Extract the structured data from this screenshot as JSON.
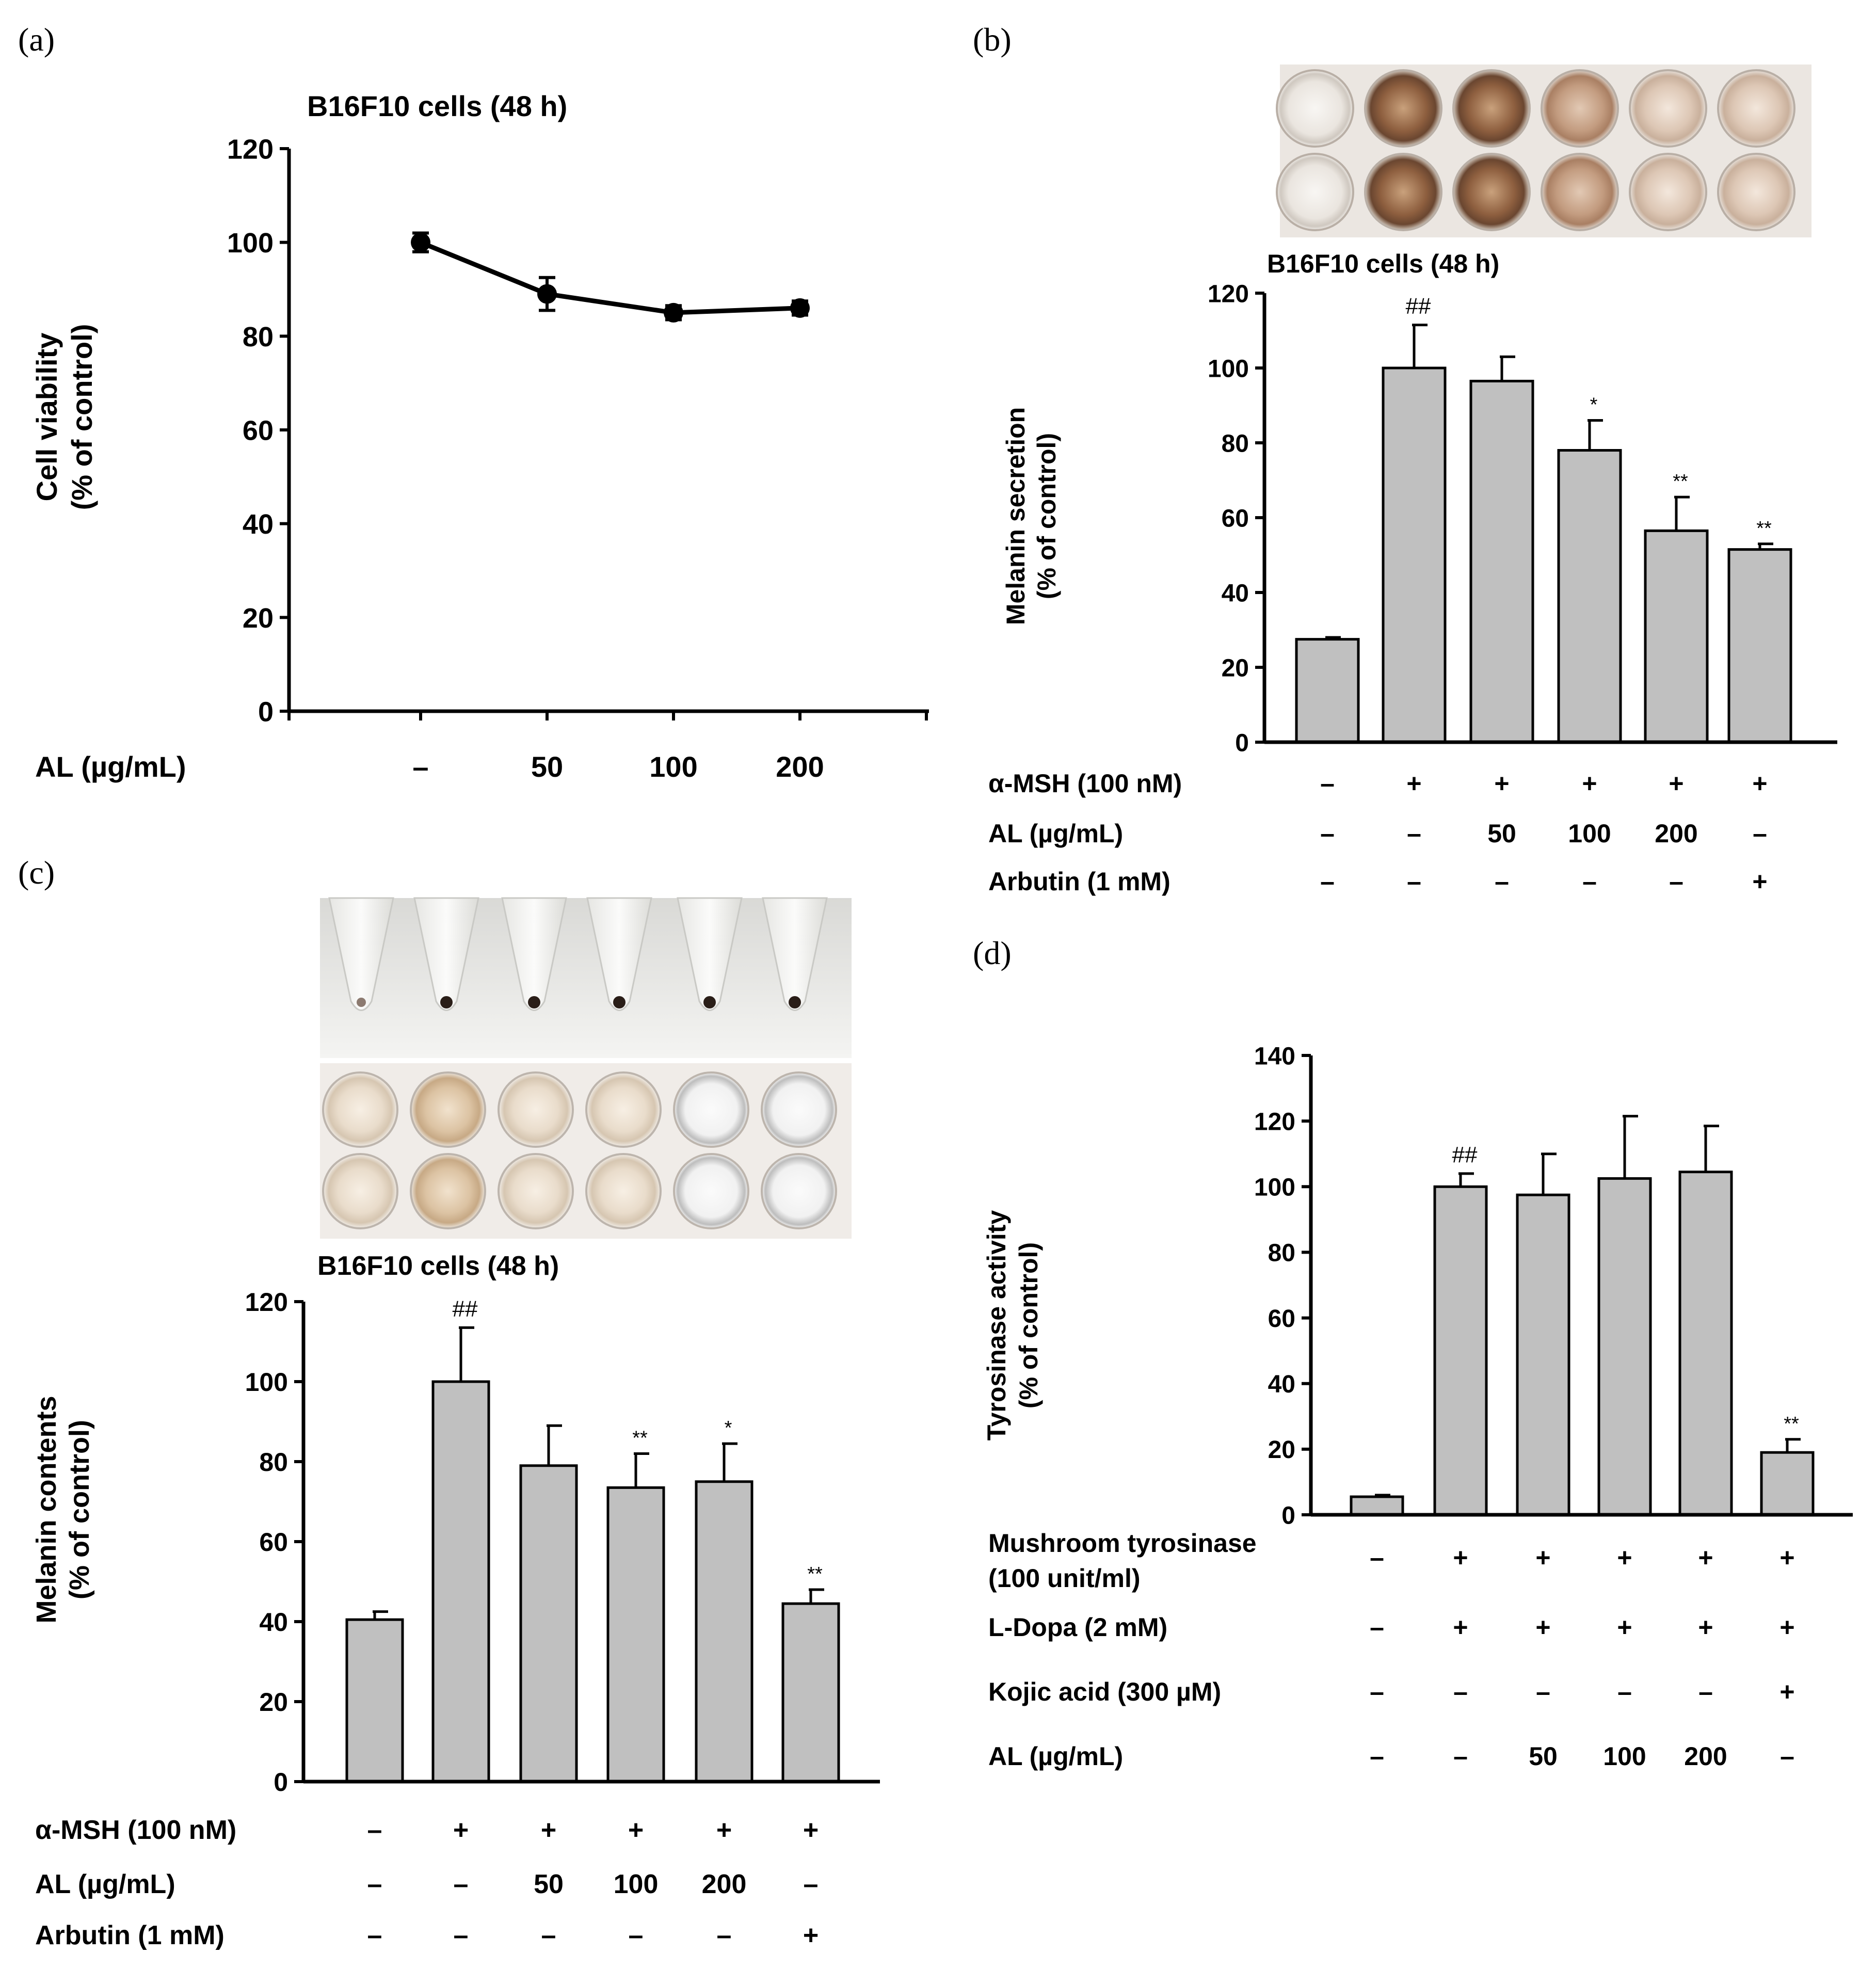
{
  "chart_data": [
    {
      "id": "a",
      "panel_label": "(a)",
      "type": "line",
      "title": "B16F10 cells (48 h)",
      "ylabel_lines": [
        "Cell viability",
        "(% of control)"
      ],
      "xlabel": "",
      "ylim": [
        0,
        120
      ],
      "yticks": [
        0,
        20,
        40,
        60,
        80,
        100,
        120
      ],
      "row_labels": [
        "AL (µg/mL)"
      ],
      "rows": [
        [
          "–",
          "50",
          "100",
          "200"
        ]
      ],
      "series": [
        {
          "name": "Cell viability",
          "values": [
            100,
            89,
            85,
            86
          ],
          "errors": [
            2,
            3.5,
            1.5,
            1.5
          ]
        }
      ],
      "colors": {
        "line": "#000000",
        "marker": "#000000"
      }
    },
    {
      "id": "b",
      "panel_label": "(b)",
      "type": "bar",
      "title": "B16F10 cells (48 h)",
      "ylabel_lines": [
        "Melanin secretion",
        "(% of control)"
      ],
      "ylim": [
        0,
        120
      ],
      "yticks": [
        0,
        20,
        40,
        60,
        80,
        100,
        120
      ],
      "values": [
        27.5,
        100,
        96.5,
        78,
        56.5,
        51.5
      ],
      "errors": [
        0.5,
        11.5,
        6.5,
        8,
        9,
        1.5
      ],
      "annotations": [
        "",
        "##",
        "",
        "*",
        "**",
        "**"
      ],
      "row_labels": [
        "α-MSH (100 nM)",
        "AL (µg/mL)",
        "Arbutin (1 mM)"
      ],
      "rows": [
        [
          "–",
          "+",
          "+",
          "+",
          "+",
          "+"
        ],
        [
          "–",
          "–",
          "50",
          "100",
          "200",
          "–"
        ],
        [
          "–",
          "–",
          "–",
          "–",
          "–",
          "+"
        ]
      ],
      "photo": "melanin secretion well plate",
      "colors": {
        "bar": "#c0c0c0",
        "stroke": "#000000"
      }
    },
    {
      "id": "c",
      "panel_label": "(c)",
      "type": "bar",
      "title": "B16F10 cells (48 h)",
      "ylabel_lines": [
        "Melanin contents",
        "(% of control)"
      ],
      "ylim": [
        0,
        120
      ],
      "yticks": [
        0,
        20,
        40,
        60,
        80,
        100,
        120
      ],
      "values": [
        40.5,
        100,
        79,
        73.5,
        75,
        44.5
      ],
      "errors": [
        2,
        13.5,
        10,
        8.5,
        9.5,
        3.5
      ],
      "annotations": [
        "",
        "##",
        "",
        "**",
        "*",
        "**"
      ],
      "row_labels": [
        "α-MSH (100 nM)",
        "AL (µg/mL)",
        "Arbutin (1 mM)"
      ],
      "rows": [
        [
          "–",
          "+",
          "+",
          "+",
          "+",
          "+"
        ],
        [
          "–",
          "–",
          "50",
          "100",
          "200",
          "–"
        ],
        [
          "–",
          "–",
          "–",
          "–",
          "–",
          "+"
        ]
      ],
      "photo": "cell pellet tubes and melanin well plate",
      "colors": {
        "bar": "#c0c0c0",
        "stroke": "#000000"
      }
    },
    {
      "id": "d",
      "panel_label": "(d)",
      "type": "bar",
      "title": "",
      "ylabel_lines": [
        "Tyrosinase activity",
        "(% of control)"
      ],
      "ylim": [
        0,
        140
      ],
      "yticks": [
        0,
        20,
        40,
        60,
        80,
        100,
        120,
        140
      ],
      "values": [
        5.5,
        100,
        97.5,
        102.5,
        104.5,
        19
      ],
      "errors": [
        0.5,
        4,
        12.5,
        19,
        14,
        4
      ],
      "annotations": [
        "",
        "##",
        "",
        "",
        "",
        "**"
      ],
      "row_labels": [
        "Mushroom tyrosinase",
        "(100 unit/ml)",
        "L-Dopa (2 mM)",
        "Kojic acid (300 µM)",
        "AL (µg/mL)"
      ],
      "rows": [
        [
          "–",
          "+",
          "+",
          "+",
          "+",
          "+"
        ],
        [
          "–",
          "+",
          "+",
          "+",
          "+",
          "+"
        ],
        [
          "–",
          "–",
          "–",
          "–",
          "–",
          "+"
        ],
        [
          "–",
          "–",
          "50",
          "100",
          "200",
          "–"
        ]
      ],
      "colors": {
        "bar": "#c0c0c0",
        "stroke": "#000000"
      }
    }
  ]
}
